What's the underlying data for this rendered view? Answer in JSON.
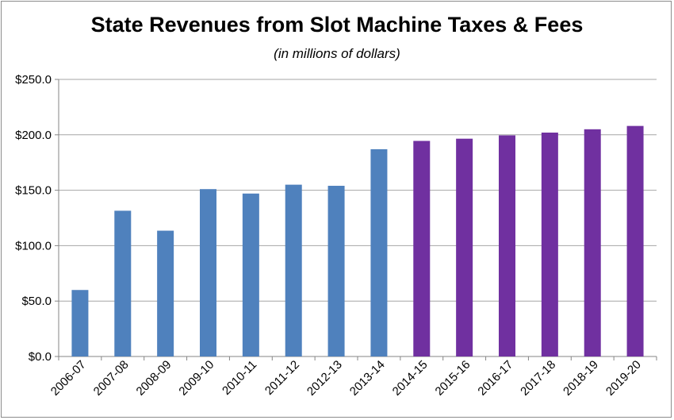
{
  "chart_data": {
    "type": "bar",
    "title": "State Revenues from Slot Machine Taxes & Fees",
    "subtitle": "(in millions of dollars)",
    "xlabel": "",
    "ylabel": "",
    "ylim": [
      0,
      250
    ],
    "yticks": [
      "$0.0",
      "$50.0",
      "$100.0",
      "$150.0",
      "$200.0",
      "$250.0"
    ],
    "ytick_values": [
      0,
      50,
      100,
      150,
      200,
      250
    ],
    "grid": true,
    "categories": [
      "2006-07",
      "2007-08",
      "2008-09",
      "2009-10",
      "2010-11",
      "2011-12",
      "2012-13",
      "2013-14",
      "2014-15",
      "2015-16",
      "2016-17",
      "2017-18",
      "2018-19",
      "2019-20"
    ],
    "values": [
      60,
      131.5,
      113.5,
      151,
      147,
      155,
      154,
      187,
      194.5,
      196.5,
      199.5,
      202,
      205,
      208
    ],
    "bar_colors": [
      "#4f81bd",
      "#4f81bd",
      "#4f81bd",
      "#4f81bd",
      "#4f81bd",
      "#4f81bd",
      "#4f81bd",
      "#4f81bd",
      "#7030a0",
      "#7030a0",
      "#7030a0",
      "#7030a0",
      "#7030a0",
      "#7030a0"
    ]
  }
}
